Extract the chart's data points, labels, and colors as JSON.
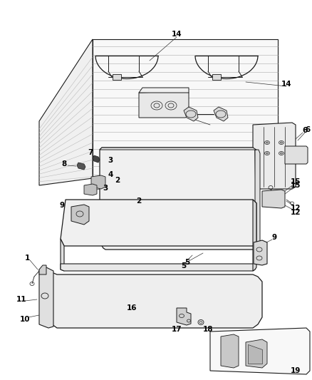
{
  "background_color": "#ffffff",
  "line_color": "#1a1a1a",
  "label_color": "#000000",
  "label_fontsize": 7.5,
  "fig_width": 4.38,
  "fig_height": 5.33,
  "dpi": 100
}
